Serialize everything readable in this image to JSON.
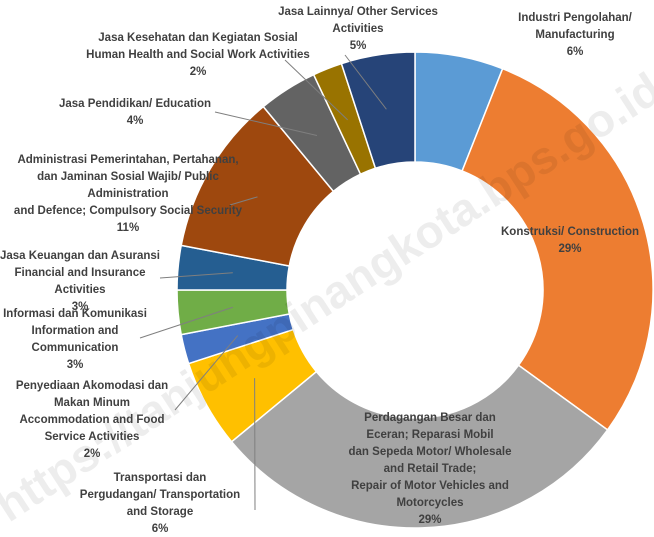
{
  "chart_data": {
    "type": "donut",
    "categories": [
      "Industri Pengolahan/\nManufacturing",
      "Konstruksi/ Construction",
      "Perdagangan Besar dan\nEceran; Reparasi Mobil\ndan Sepeda Motor/ Wholesale\nand Retail Trade;\nRepair of Motor Vehicles and\nMotorcycles",
      "Transportasi dan\nPergudangan/ Transportation\nand Storage",
      "Penyediaan Akomodasi dan\nMakan Minum\nAccommodation and Food\nService Activities",
      "Informasi dan Komunikasi\nInformation and\nCommunication",
      "Jasa Keuangan dan Asuransi\nFinancial and Insurance\nActivities",
      "Administrasi Pemerintahan, Pertahanan,\ndan Jaminan Sosial Wajib/ Public\nAdministration\nand Defence; Compulsory Social Security",
      "Jasa Pendidikan/ Education",
      "Jasa Kesehatan dan Kegiatan Sosial\nHuman Health and Social Work Activities",
      "Jasa Lainnya/ Other Services\nActivities"
    ],
    "values": [
      6,
      29,
      29,
      6,
      2,
      3,
      3,
      11,
      4,
      2,
      5
    ],
    "value_labels": [
      "6%",
      "29%",
      "29%",
      "6%",
      "2%",
      "3%",
      "3%",
      "11%",
      "4%",
      "2%",
      "5%"
    ],
    "colors": [
      "#5B9BD5",
      "#ED7D31",
      "#A5A5A5",
      "#FFC000",
      "#4472C4",
      "#70AD47",
      "#255E91",
      "#9E480E",
      "#636363",
      "#997300",
      "#264478"
    ],
    "watermark": "https://tanjungpinangkota.bps.go.id"
  }
}
